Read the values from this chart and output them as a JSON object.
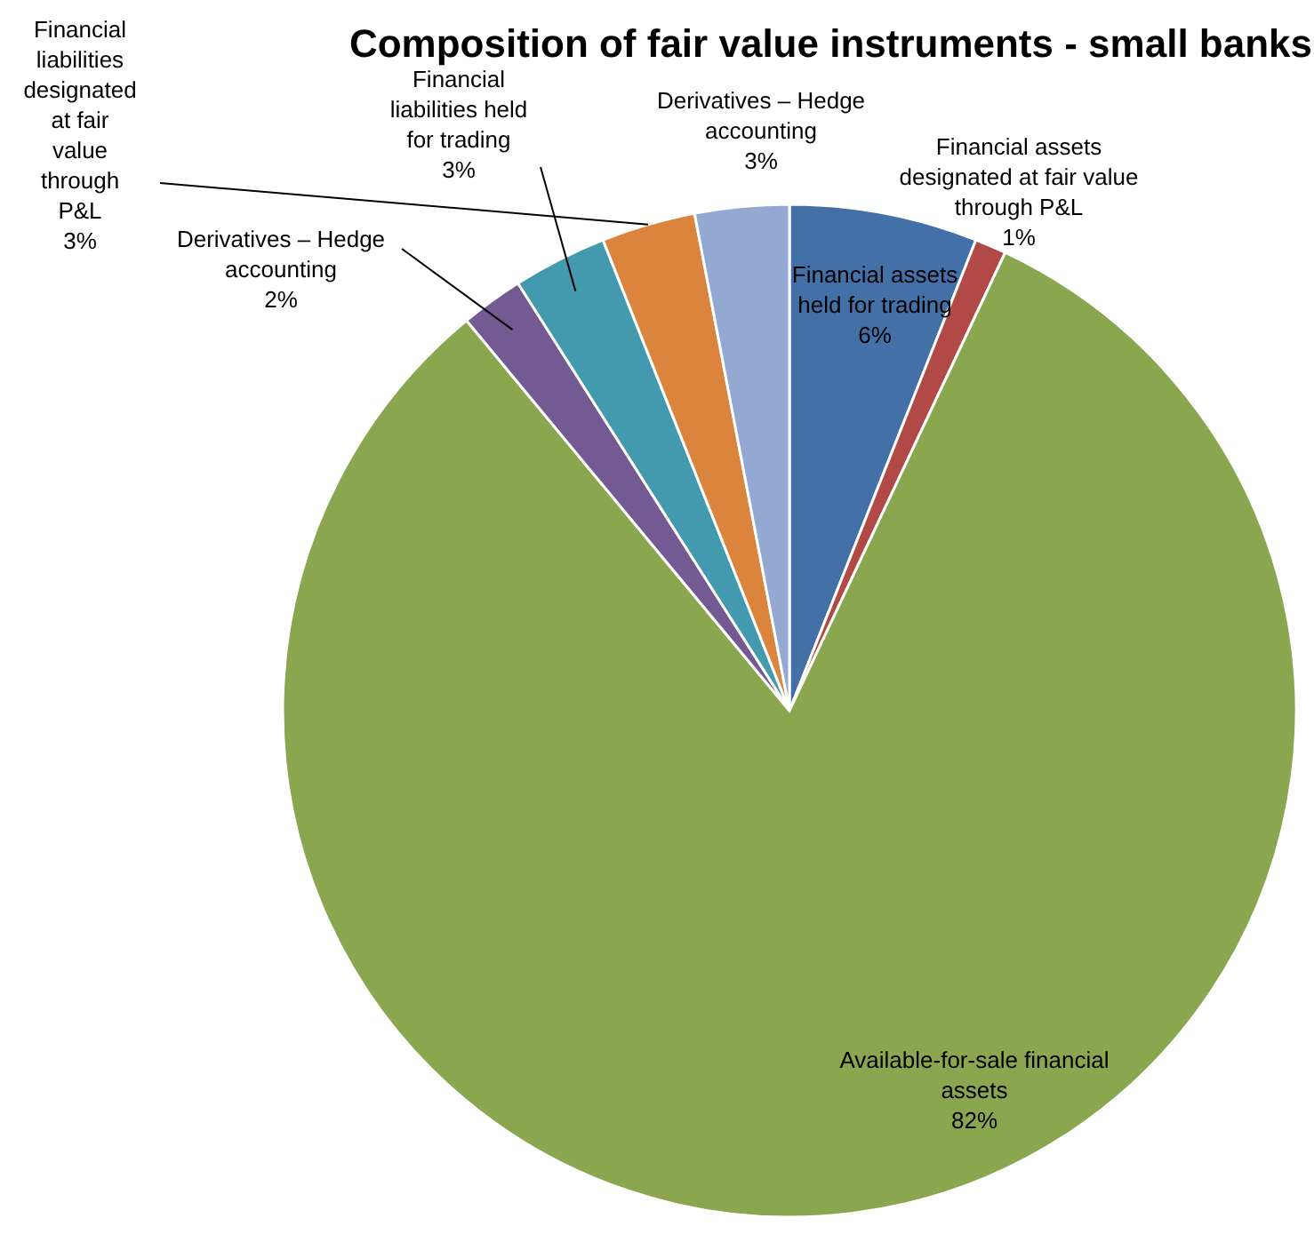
{
  "chart_data": {
    "type": "pie",
    "title": "Composition of fair value instruments - small banks",
    "categories": [
      "Financial assets held for trading",
      "Financial assets designated at fair value through P&L",
      "Available-for-sale financial assets",
      "Derivatives – Hedge accounting",
      "Financial liabilities held for trading",
      "Financial liabilities designated at fair value through P&L",
      "Derivatives – Hedge accounting"
    ],
    "values": [
      6,
      1,
      82,
      2,
      3,
      3,
      3
    ],
    "value_labels": [
      "6%",
      "1%",
      "82%",
      "2%",
      "3%",
      "3%",
      "3%"
    ],
    "colors": [
      "#4470a8",
      "#b14a46",
      "#8aa64f",
      "#735a92",
      "#4399ae",
      "#db843d",
      "#94a9d2"
    ],
    "legend": false
  }
}
